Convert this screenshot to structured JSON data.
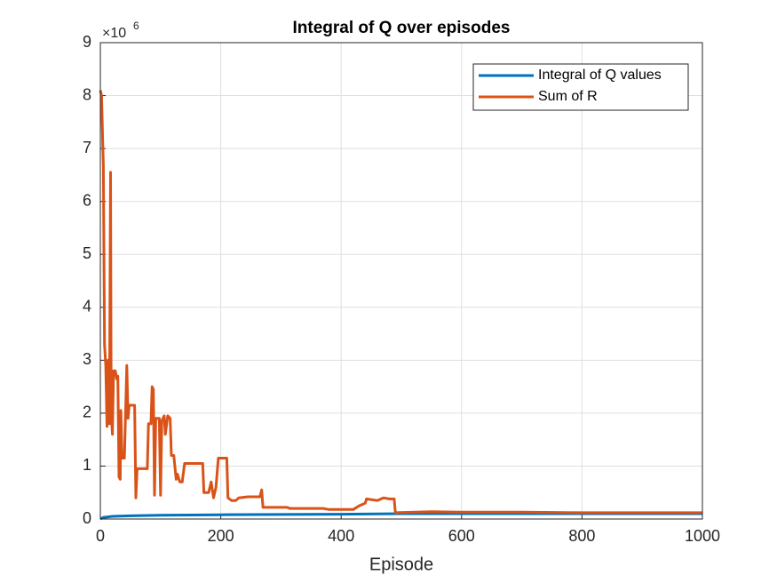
{
  "chart_data": {
    "type": "line",
    "title": "Integral of Q over episodes",
    "xlabel": "Episode",
    "multiplier_base": "×10",
    "multiplier_exponent": "6",
    "xlim": [
      0,
      1000
    ],
    "xticks": [
      0,
      200,
      400,
      600,
      800,
      1000
    ],
    "ylim": [
      0,
      9
    ],
    "yticks": [
      0,
      1,
      2,
      3,
      4,
      5,
      6,
      7,
      8,
      9
    ],
    "grid": true,
    "legend_position": "upper-right",
    "series": [
      {
        "name": "Integral of Q values",
        "color": "#0072BD",
        "x": [
          0,
          5,
          20,
          50,
          100,
          200,
          300,
          400,
          500,
          600,
          800,
          1000
        ],
        "values": [
          0,
          0.03,
          0.05,
          0.06,
          0.07,
          0.08,
          0.085,
          0.09,
          0.1,
          0.1,
          0.1,
          0.1
        ]
      },
      {
        "name": "Sum of R",
        "color": "#D95319",
        "x": [
          0,
          2,
          4,
          5,
          7,
          9,
          11,
          13,
          15,
          17,
          18,
          20,
          22,
          25,
          27,
          29,
          31,
          33,
          34,
          36,
          40,
          44,
          46,
          48,
          57,
          59,
          61,
          78,
          80,
          84,
          86,
          88,
          90,
          92,
          98,
          100,
          102,
          106,
          108,
          112,
          116,
          118,
          122,
          126,
          128,
          132,
          136,
          140,
          170,
          172,
          180,
          184,
          188,
          192,
          196,
          210,
          212,
          218,
          225,
          230,
          245,
          265,
          268,
          270,
          310,
          315,
          370,
          380,
          420,
          430,
          440,
          442,
          460,
          470,
          480,
          488,
          490,
          550,
          600,
          700,
          800,
          900,
          1000
        ],
        "values": [
          8.1,
          8.0,
          7.1,
          6.7,
          3.3,
          2.9,
          1.75,
          3.0,
          1.8,
          6.55,
          2.0,
          1.6,
          2.8,
          2.8,
          2.65,
          2.7,
          0.8,
          0.75,
          2.05,
          1.15,
          1.15,
          2.9,
          1.9,
          2.15,
          2.15,
          0.4,
          0.95,
          0.95,
          1.8,
          1.8,
          2.5,
          2.45,
          0.45,
          1.9,
          1.9,
          0.45,
          1.85,
          1.95,
          1.6,
          1.95,
          1.9,
          1.2,
          1.2,
          0.75,
          0.85,
          0.7,
          0.7,
          1.05,
          1.05,
          0.5,
          0.5,
          0.7,
          0.4,
          0.6,
          1.15,
          1.15,
          0.4,
          0.35,
          0.35,
          0.4,
          0.42,
          0.42,
          0.55,
          0.22,
          0.22,
          0.2,
          0.2,
          0.18,
          0.18,
          0.25,
          0.3,
          0.38,
          0.35,
          0.4,
          0.38,
          0.38,
          0.12,
          0.14,
          0.13,
          0.13,
          0.12,
          0.12,
          0.12
        ]
      }
    ]
  }
}
